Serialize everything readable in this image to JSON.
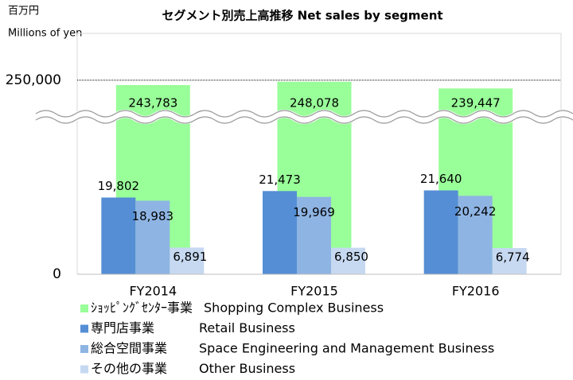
{
  "chart_data": {
    "type": "bar",
    "title": "セグメント別売上高推移  Net sales by segment",
    "unit_label": "百万円",
    "unit_label_en": "Millions of yen",
    "categories": [
      "FY2014",
      "FY2015",
      "FY2016"
    ],
    "series": [
      {
        "name": "ｼｮｯﾋﾟﾝｸﾞｾﾝﾀｰ事業",
        "name_en": "Shopping Complex Business",
        "color": "#99ff99",
        "values": [
          243783,
          248078,
          239447
        ],
        "value_labels": [
          "243,783",
          "248,078",
          "239,447"
        ]
      },
      {
        "name": "専門店事業",
        "name_en": "Retail Business",
        "color": "#558ed5",
        "values": [
          19802,
          21473,
          21640
        ],
        "value_labels": [
          "19,802",
          "21,473",
          "21,640"
        ]
      },
      {
        "name": "総合空間事業",
        "name_en": "Space Engineering and Management Business",
        "color": "#8eb4e3",
        "values": [
          18983,
          19969,
          20242
        ],
        "value_labels": [
          "18,983",
          "19,969",
          "20,242"
        ]
      },
      {
        "name": "その他の事業",
        "name_en": "Other Business",
        "color": "#c6d9f1",
        "values": [
          6891,
          6850,
          6774
        ],
        "value_labels": [
          "6,891",
          "6,850",
          "6,774"
        ]
      }
    ],
    "ylim": [
      0,
      310000
    ],
    "axis_break": [
      40000,
      200000
    ],
    "yticks": [
      0,
      {
        "value": 250000,
        "label": "250,000"
      }
    ],
    "legend": "bottom"
  }
}
